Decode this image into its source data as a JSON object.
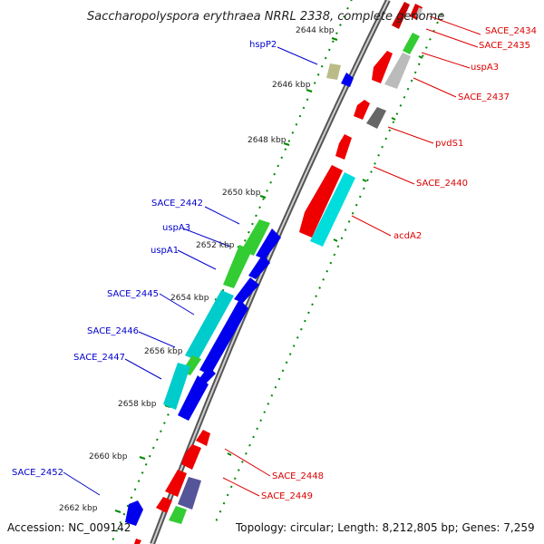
{
  "title": "Saccharopolyspora erythraea NRRL 2338, complete genome",
  "footer": {
    "accession": "Accession: NC_009142",
    "summary": "Topology: circular; Length: 8,212,805 bp; Genes: 7,259"
  },
  "colors": {
    "red": "#e00000",
    "green": "#33cc33",
    "blue": "#0000ee",
    "cyan": "#00cccc",
    "grey": "#bbbbbb",
    "dark_grey": "#666666",
    "olive": "#bbbb88",
    "purple": "#555599",
    "label_red": "#dd0000",
    "label_blue": "#0000cc",
    "tick_green": "#008800"
  },
  "ticks": [
    "2644 kbp",
    "2646 kbp",
    "2648 kbp",
    "2650 kbp",
    "2652 kbp",
    "2654 kbp",
    "2656 kbp",
    "2658 kbp",
    "2660 kbp",
    "2662 kbp"
  ],
  "labels_right": [
    "SACE_2434",
    "SACE_2435",
    "uspA3",
    "SACE_2437",
    "pvdS1",
    "SACE_2440",
    "acdA2",
    "SACE_2448",
    "SACE_2449"
  ],
  "labels_left": [
    "hspP2",
    "SACE_2442",
    "uspA3",
    "uspA1",
    "SACE_2445",
    "SACE_2446",
    "SACE_2447",
    "SACE_2452"
  ]
}
